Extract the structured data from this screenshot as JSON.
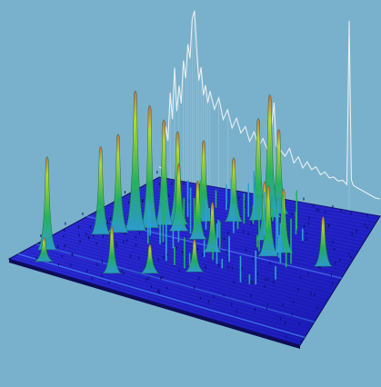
{
  "chart_data": {
    "type": "surface-3d",
    "title": "",
    "xlabel": "",
    "ylabel": "",
    "zlabel": "",
    "grid": false,
    "legend": "none",
    "colors": {
      "background": "#79b1cc",
      "floor": "#2a2ad8",
      "floor_dark": "#141496",
      "floor_edge": "#0d0d55",
      "peak_low": "#2ea0d0",
      "peak_mid": "#22b35a",
      "peak_high": "#c4d826",
      "peak_top": "#d8653c",
      "trace": "#f2f2f2"
    },
    "peaks": [
      {
        "x": 0.05,
        "y": 0.16,
        "h": 0.55,
        "w": 0.012
      },
      {
        "x": 0.12,
        "y": 0.4,
        "h": 0.52,
        "w": 0.012
      },
      {
        "x": 0.16,
        "y": 0.45,
        "h": 0.58,
        "w": 0.014
      },
      {
        "x": 0.2,
        "y": 0.5,
        "h": 0.82,
        "w": 0.016
      },
      {
        "x": 0.23,
        "y": 0.55,
        "h": 0.72,
        "w": 0.012
      },
      {
        "x": 0.26,
        "y": 0.6,
        "h": 0.62,
        "w": 0.012
      },
      {
        "x": 0.3,
        "y": 0.63,
        "h": 0.55,
        "w": 0.014
      },
      {
        "x": 0.33,
        "y": 0.58,
        "h": 0.4,
        "w": 0.012
      },
      {
        "x": 0.37,
        "y": 0.7,
        "h": 0.48,
        "w": 0.012
      },
      {
        "x": 0.42,
        "y": 0.55,
        "h": 0.35,
        "w": 0.01
      },
      {
        "x": 0.47,
        "y": 0.75,
        "h": 0.38,
        "w": 0.01
      },
      {
        "x": 0.51,
        "y": 0.48,
        "h": 0.3,
        "w": 0.01
      },
      {
        "x": 0.55,
        "y": 0.8,
        "h": 0.6,
        "w": 0.012
      },
      {
        "x": 0.58,
        "y": 0.84,
        "h": 0.72,
        "w": 0.016
      },
      {
        "x": 0.6,
        "y": 0.88,
        "h": 0.5,
        "w": 0.012
      },
      {
        "x": 0.64,
        "y": 0.66,
        "h": 0.35,
        "w": 0.01
      },
      {
        "x": 0.7,
        "y": 0.55,
        "h": 0.42,
        "w": 0.014
      },
      {
        "x": 0.74,
        "y": 0.6,
        "h": 0.38,
        "w": 0.012
      },
      {
        "x": 0.91,
        "y": 0.57,
        "h": 0.3,
        "w": 0.01
      },
      {
        "x": 0.3,
        "y": 0.12,
        "h": 0.28,
        "w": 0.01
      },
      {
        "x": 0.4,
        "y": 0.2,
        "h": 0.18,
        "w": 0.01
      },
      {
        "x": 0.09,
        "y": 0.06,
        "h": 0.15,
        "w": 0.01
      },
      {
        "x": 0.52,
        "y": 0.3,
        "h": 0.2,
        "w": 0.01
      }
    ],
    "trace": [
      [
        0.0,
        0.06
      ],
      [
        0.02,
        0.05
      ],
      [
        0.03,
        0.3
      ],
      [
        0.04,
        0.22
      ],
      [
        0.05,
        0.5
      ],
      [
        0.06,
        0.35
      ],
      [
        0.07,
        0.65
      ],
      [
        0.08,
        0.4
      ],
      [
        0.09,
        0.55
      ],
      [
        0.1,
        0.45
      ],
      [
        0.11,
        0.7
      ],
      [
        0.12,
        0.6
      ],
      [
        0.13,
        0.8
      ],
      [
        0.14,
        0.72
      ],
      [
        0.15,
        0.95
      ],
      [
        0.16,
        1.0
      ],
      [
        0.17,
        0.78
      ],
      [
        0.18,
        0.6
      ],
      [
        0.19,
        0.68
      ],
      [
        0.2,
        0.52
      ],
      [
        0.21,
        0.58
      ],
      [
        0.22,
        0.48
      ],
      [
        0.23,
        0.55
      ],
      [
        0.25,
        0.45
      ],
      [
        0.27,
        0.52
      ],
      [
        0.29,
        0.4
      ],
      [
        0.31,
        0.46
      ],
      [
        0.33,
        0.36
      ],
      [
        0.35,
        0.42
      ],
      [
        0.37,
        0.34
      ],
      [
        0.39,
        0.38
      ],
      [
        0.41,
        0.3
      ],
      [
        0.43,
        0.36
      ],
      [
        0.45,
        0.28
      ],
      [
        0.47,
        0.33
      ],
      [
        0.49,
        0.27
      ],
      [
        0.51,
        0.42
      ],
      [
        0.52,
        0.55
      ],
      [
        0.53,
        0.3
      ],
      [
        0.55,
        0.28
      ],
      [
        0.57,
        0.25
      ],
      [
        0.59,
        0.3
      ],
      [
        0.61,
        0.22
      ],
      [
        0.63,
        0.26
      ],
      [
        0.65,
        0.2
      ],
      [
        0.67,
        0.24
      ],
      [
        0.69,
        0.2
      ],
      [
        0.71,
        0.22
      ],
      [
        0.73,
        0.18
      ],
      [
        0.75,
        0.2
      ],
      [
        0.77,
        0.17
      ],
      [
        0.79,
        0.18
      ],
      [
        0.81,
        0.16
      ],
      [
        0.83,
        0.17
      ],
      [
        0.85,
        0.15
      ],
      [
        0.86,
        1.1
      ],
      [
        0.87,
        0.18
      ],
      [
        0.88,
        0.15
      ],
      [
        0.9,
        0.14
      ],
      [
        0.92,
        0.13
      ],
      [
        0.94,
        0.12
      ],
      [
        0.96,
        0.11
      ],
      [
        0.98,
        0.1
      ],
      [
        1.0,
        0.1
      ]
    ]
  }
}
